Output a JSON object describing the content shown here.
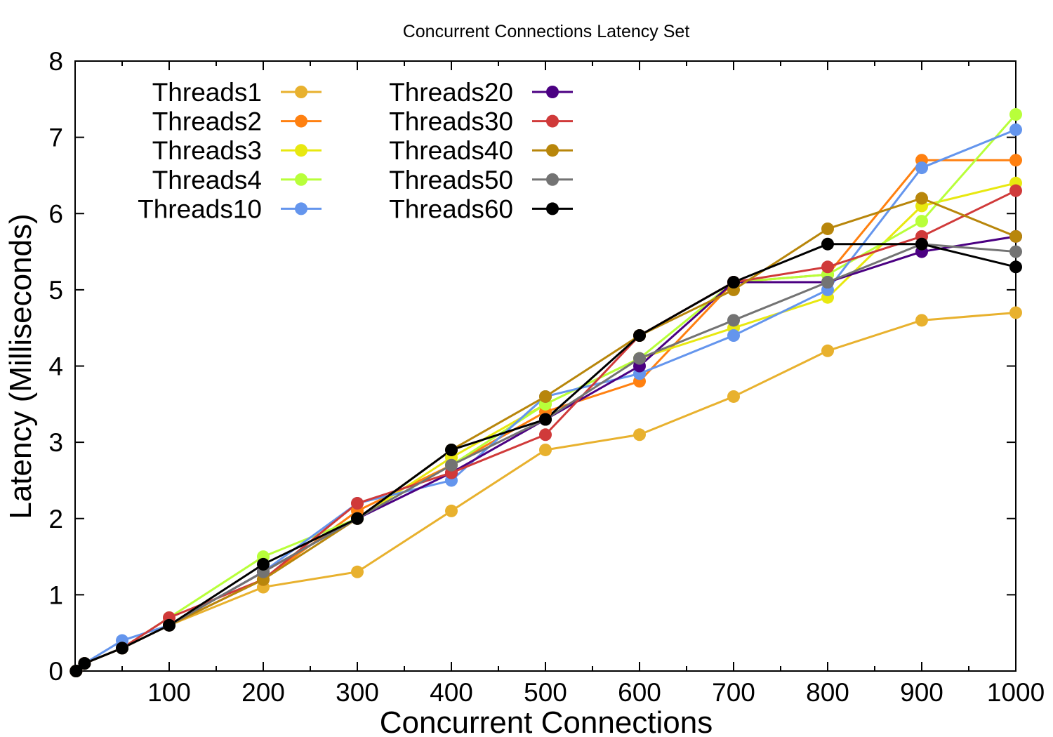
{
  "chart_data": {
    "type": "line",
    "title": "Concurrent Connections Latency Set",
    "xlabel": "Concurrent Connections",
    "ylabel": "Latency (Milliseconds)",
    "xlim": [
      0,
      1000
    ],
    "ylim": [
      0,
      8
    ],
    "xticks": [
      100,
      200,
      300,
      400,
      500,
      600,
      700,
      800,
      900,
      1000
    ],
    "yticks": [
      0,
      1,
      2,
      3,
      4,
      5,
      6,
      7,
      8
    ],
    "grid": false,
    "legend_position": "top-left",
    "x": [
      1,
      10,
      50,
      100,
      200,
      300,
      400,
      500,
      600,
      700,
      800,
      900,
      1000
    ],
    "series": [
      {
        "name": "Threads1",
        "color": "#e8b12e",
        "values": [
          0,
          0.1,
          0.3,
          0.6,
          1.1,
          1.3,
          2.1,
          2.9,
          3.1,
          3.6,
          4.2,
          4.6,
          4.7
        ]
      },
      {
        "name": "Threads2",
        "color": "#ff8010",
        "values": [
          0,
          0.1,
          0.3,
          0.6,
          1.2,
          2.1,
          2.7,
          3.4,
          3.8,
          5.1,
          5.2,
          6.7,
          6.7
        ]
      },
      {
        "name": "Threads3",
        "color": "#e8e810",
        "values": [
          0,
          0.1,
          0.3,
          0.6,
          1.3,
          2.0,
          2.8,
          3.5,
          4.1,
          4.5,
          4.9,
          6.1,
          6.4
        ]
      },
      {
        "name": "Threads4",
        "color": "#b8ff3a",
        "values": [
          0,
          0.1,
          0.3,
          0.7,
          1.5,
          2.0,
          2.7,
          3.5,
          4.1,
          5.1,
          5.2,
          5.9,
          7.3
        ]
      },
      {
        "name": "Threads10",
        "color": "#6495ed",
        "values": [
          0,
          0.1,
          0.4,
          0.6,
          1.3,
          2.2,
          2.5,
          3.6,
          3.9,
          4.4,
          5.0,
          6.6,
          7.1
        ]
      },
      {
        "name": "Threads20",
        "color": "#4b0082",
        "values": [
          0,
          0.1,
          0.3,
          0.6,
          1.3,
          2.0,
          2.6,
          3.3,
          4.0,
          5.1,
          5.1,
          5.5,
          5.7
        ]
      },
      {
        "name": "Threads30",
        "color": "#d03a3a",
        "values": [
          0,
          0.1,
          0.3,
          0.7,
          1.2,
          2.2,
          2.6,
          3.1,
          4.4,
          5.1,
          5.3,
          5.7,
          6.3
        ]
      },
      {
        "name": "Threads40",
        "color": "#b8860b",
        "values": [
          0,
          0.1,
          0.3,
          0.6,
          1.2,
          2.0,
          2.9,
          3.6,
          4.4,
          5.0,
          5.8,
          6.2,
          5.7
        ]
      },
      {
        "name": "Threads50",
        "color": "#737373",
        "values": [
          0,
          0.1,
          0.3,
          0.6,
          1.3,
          2.0,
          2.7,
          3.3,
          4.1,
          4.6,
          5.1,
          5.6,
          5.5
        ]
      },
      {
        "name": "Threads60",
        "color": "#000000",
        "values": [
          0,
          0.1,
          0.3,
          0.6,
          1.4,
          2.0,
          2.9,
          3.3,
          4.4,
          5.1,
          5.6,
          5.6,
          5.3
        ]
      }
    ]
  }
}
